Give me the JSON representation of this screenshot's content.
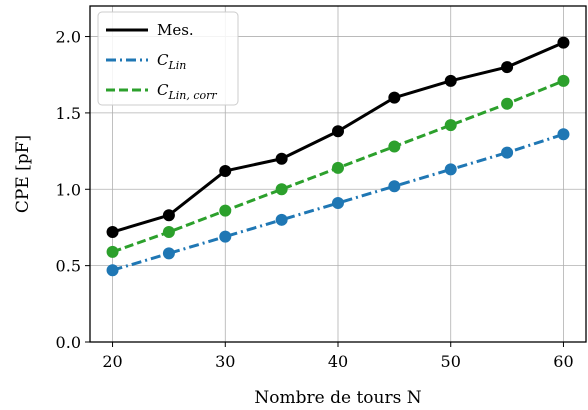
{
  "chart_data": {
    "type": "line",
    "xlabel": "Nombre de tours N",
    "ylabel": "CPE [pF]",
    "xlim": [
      18,
      62
    ],
    "ylim": [
      0.0,
      2.2
    ],
    "xticks": [
      "20",
      "30",
      "40",
      "50",
      "60"
    ],
    "yticks": [
      "0.0",
      "0.5",
      "1.0",
      "1.5",
      "2.0"
    ],
    "xtick_values": [
      20,
      30,
      40,
      50,
      60
    ],
    "ytick_values": [
      0.0,
      0.5,
      1.0,
      1.5,
      2.0
    ],
    "grid": true,
    "legend_position": "top-left",
    "x": [
      20,
      25,
      30,
      35,
      40,
      45,
      50,
      55,
      60
    ],
    "series": [
      {
        "name": "Mes.",
        "name_base": "",
        "name_sub": "",
        "color": "#000000",
        "style": "solid",
        "values": [
          0.72,
          0.83,
          1.12,
          1.2,
          1.38,
          1.6,
          1.71,
          1.8,
          1.96
        ]
      },
      {
        "name": "C_Lin",
        "name_base": "C",
        "name_sub": "Lin",
        "color": "#1f77b4",
        "style": "dashdot",
        "values": [
          0.47,
          0.58,
          0.69,
          0.8,
          0.91,
          1.02,
          1.13,
          1.24,
          1.36
        ]
      },
      {
        "name": "C_Lin,corr",
        "name_base": "C",
        "name_sub": "Lin, corr",
        "color": "#2ca02c",
        "style": "dashed",
        "values": [
          0.59,
          0.72,
          0.86,
          1.0,
          1.14,
          1.28,
          1.42,
          1.56,
          1.71
        ]
      }
    ]
  }
}
